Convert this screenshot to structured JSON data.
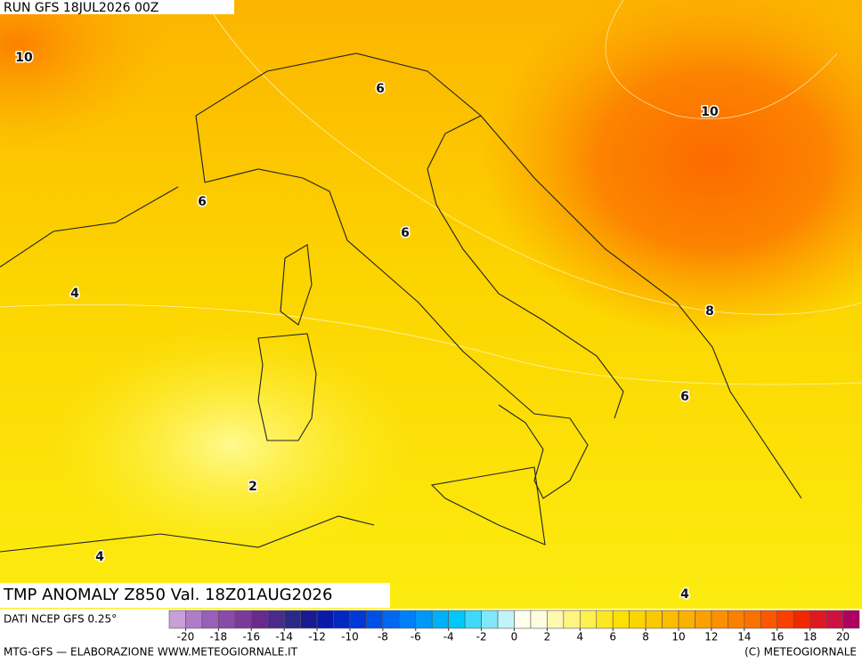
{
  "header": {
    "run": "RUN GFS 18JUL2026 00Z"
  },
  "contour_labels": [
    10,
    6,
    10,
    6,
    6,
    4,
    8,
    6,
    2,
    4,
    4
  ],
  "title": "TMP ANOMALY Z850 Val. 18Z01AUG2026",
  "source": "DATI NCEP GFS 0.25°",
  "colorbar": {
    "ticks": [
      -20,
      -18,
      -16,
      -14,
      -12,
      -10,
      -8,
      -6,
      -4,
      -2,
      0,
      2,
      4,
      6,
      8,
      10,
      12,
      14,
      16,
      18,
      20
    ],
    "colors": [
      "#c8a0d8",
      "#b07cc8",
      "#9a5fb8",
      "#8a4aa8",
      "#7a3a98",
      "#6a2a88",
      "#4a2a8a",
      "#2a2a8a",
      "#1a1a90",
      "#0a1aa8",
      "#0028c0",
      "#0038d8",
      "#0050e8",
      "#0068f0",
      "#0080f8",
      "#0098f8",
      "#00b0f8",
      "#00c8f8",
      "#40d8f8",
      "#80e8f8",
      "#c0f4f8",
      "#fffff0",
      "#fffde0",
      "#fff8b0",
      "#fff480",
      "#fff050",
      "#fce820",
      "#fce000",
      "#fcd400",
      "#fcc800",
      "#fcbc00",
      "#fcb000",
      "#fca000",
      "#fc9000",
      "#fc8000",
      "#fc7000",
      "#fc5800",
      "#f84000",
      "#f02800",
      "#e01820",
      "#d01040",
      "#b00060"
    ]
  },
  "footer": {
    "left": "MTG-GFS — ELABORAZIONE WWW.METEOGIORNALE.IT",
    "right": "(C) METEOGIORNALE"
  }
}
